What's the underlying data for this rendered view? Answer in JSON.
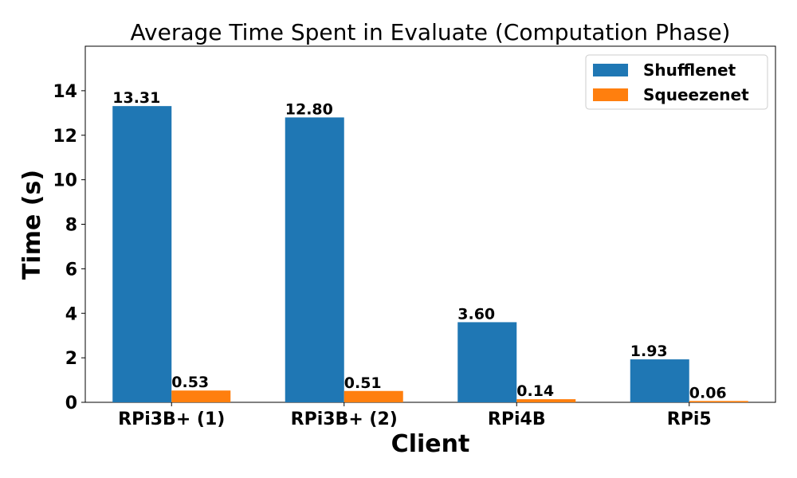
{
  "chart_data": {
    "type": "bar",
    "title": "Average Time Spent in Evaluate (Computation Phase)",
    "xlabel": "Client",
    "ylabel": "Time (s)",
    "categories": [
      "RPi3B+ (1)",
      "RPi3B+ (2)",
      "RPi4B",
      "RPi5"
    ],
    "series": [
      {
        "name": "Shufflenet",
        "color": "#1f77b4",
        "values": [
          13.31,
          12.8,
          3.6,
          1.93
        ],
        "labels": [
          "13.31",
          "12.80",
          "3.60",
          "1.93"
        ]
      },
      {
        "name": "Squeezenet",
        "color": "#ff7f0e",
        "values": [
          0.53,
          0.51,
          0.14,
          0.06
        ],
        "labels": [
          "0.53",
          "0.51",
          "0.14",
          "0.06"
        ]
      }
    ],
    "ylim": [
      0,
      16
    ],
    "yticks": [
      "0",
      "2",
      "4",
      "6",
      "8",
      "10",
      "12",
      "14"
    ],
    "grid": false,
    "legend_position": "top-right"
  }
}
